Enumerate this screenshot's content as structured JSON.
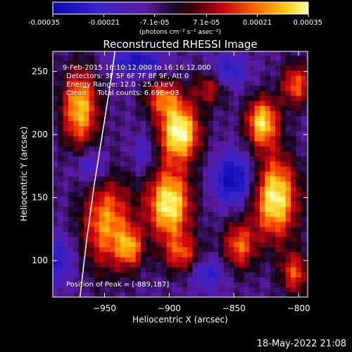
{
  "chart_data": {
    "type": "heatmap",
    "title": "Reconstructed RHESSI Image",
    "xlabel": "Heliocentric X (arcsec)",
    "ylabel": "Heliocentric Y (arcsec)",
    "xlim": [
      -990,
      -793
    ],
    "ylim": [
      71,
      266
    ],
    "xticks": [
      -950,
      -900,
      -850,
      -800
    ],
    "yticks": [
      100,
      150,
      200,
      250
    ],
    "colorbar": {
      "min": -0.00035,
      "max": 0.00035,
      "ticks": [
        -0.00035,
        -0.00021,
        -7.1e-05,
        7.1e-05,
        0.00021,
        0.00035
      ],
      "tick_labels": [
        "-0.00035",
        "-0.00021",
        "-7.1e-05",
        "7.1e-05",
        "0.00021",
        "0.00035"
      ],
      "units": "(photons cm⁻² s⁻¹ asec⁻²)"
    },
    "info_lines": [
      "9-Feb-2015 16:10:12.000 to 16:16:12.000",
      "Detectors: 3F 5F 6F 7F 8F 9F, Att 0",
      "Energy Range: 12.0 - 25.0 keV",
      "Clean     Total counts: 6.69E+03"
    ],
    "peak_label": "Position of Peak = [-889,187]",
    "peak": [
      -889,
      187
    ],
    "limb_curve": [
      [
        -969,
        71
      ],
      [
        -964,
        115
      ],
      [
        -958,
        160
      ],
      [
        -951,
        205
      ],
      [
        -944,
        250
      ],
      [
        -942,
        266
      ]
    ]
  },
  "footer_date": "18-May-2022 21:08"
}
